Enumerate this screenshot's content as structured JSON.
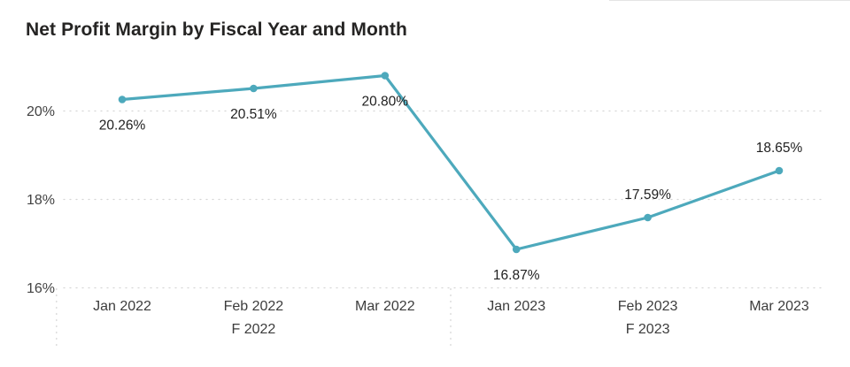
{
  "title": "Net Profit Margin by Fiscal Year and Month",
  "chart_data": {
    "type": "line",
    "title": "Net Profit Margin by Fiscal Year and Month",
    "categories": [
      "Jan 2022",
      "Feb 2022",
      "Mar 2022",
      "Jan 2023",
      "Feb 2023",
      "Mar 2023"
    ],
    "x_groups": [
      {
        "label": "F 2022",
        "categories": [
          "Jan 2022",
          "Feb 2022",
          "Mar 2022"
        ]
      },
      {
        "label": "F 2023",
        "categories": [
          "Jan 2023",
          "Feb 2023",
          "Mar 2023"
        ]
      }
    ],
    "series": [
      {
        "name": "Net Profit Margin",
        "values": [
          20.26,
          20.51,
          20.8,
          16.87,
          17.59,
          18.65
        ],
        "labels": [
          "20.26%",
          "20.51%",
          "20.80%",
          "16.87%",
          "17.59%",
          "18.65%"
        ],
        "label_placement": [
          "below",
          "below",
          "below",
          "below",
          "above",
          "above"
        ],
        "color": "#4da9bc"
      }
    ],
    "y_axis": {
      "min": 16,
      "max": 21,
      "ticks": [
        {
          "value": 20,
          "label": "20%"
        },
        {
          "value": 18,
          "label": "18%"
        },
        {
          "value": 16,
          "label": "16%"
        }
      ]
    },
    "xlabel": "",
    "ylabel": "",
    "legend": "none",
    "grid": {
      "horizontal": "dotted",
      "color": "#d6d6d6"
    },
    "colors": {
      "line": "#4da9bc",
      "title_text": "#252423",
      "axis_text": "#424242",
      "data_label_text": "#212121"
    }
  }
}
